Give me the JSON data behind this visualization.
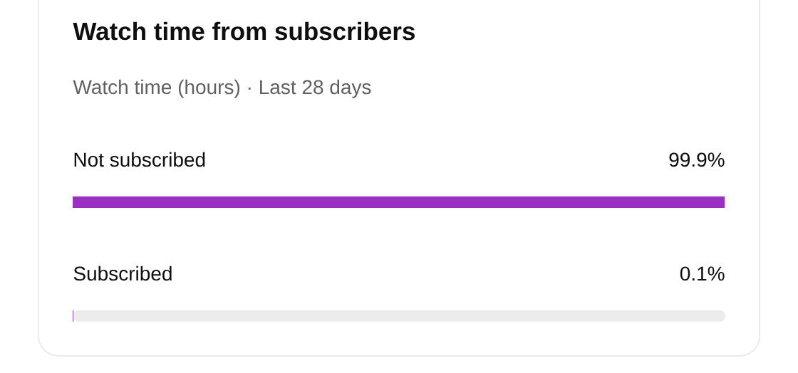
{
  "chart_data": {
    "type": "bar",
    "orientation": "horizontal",
    "title": "Watch time from subscribers",
    "subtitle": "Watch time (hours) · Last 28 days",
    "categories": [
      "Not subscribed",
      "Subscribed"
    ],
    "xlim": [
      0,
      100
    ],
    "tick_labels": false,
    "series": [
      {
        "color": "#9b2fc3",
        "values": [
          99.9,
          0.1
        ],
        "value_labels": [
          "99.9%",
          "0.1%"
        ]
      }
    ]
  }
}
